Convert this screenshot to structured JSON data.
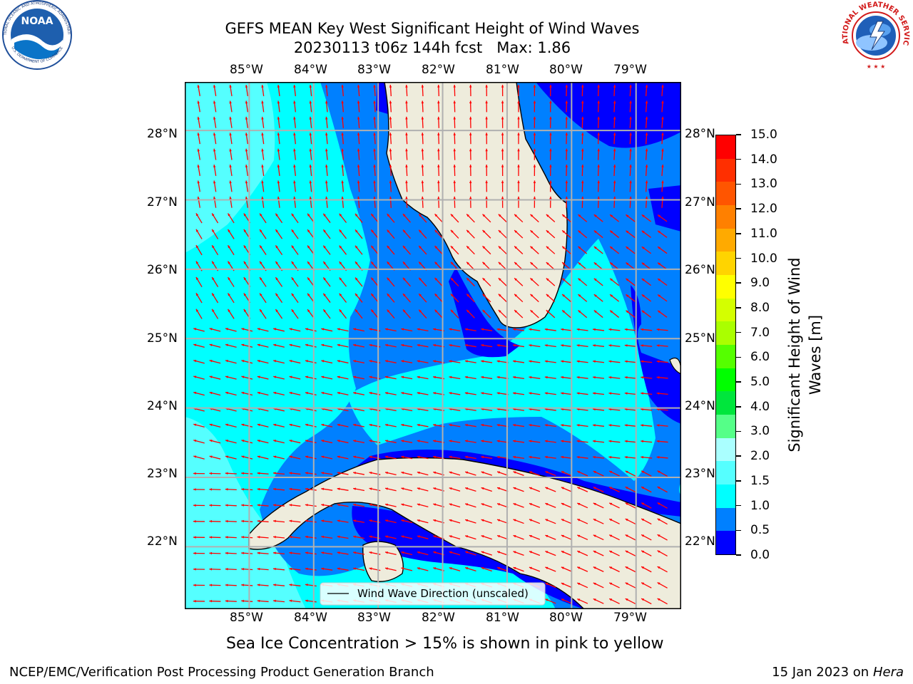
{
  "header": {
    "title_line1": "GEFS MEAN Key West Significant Height of Wind Waves",
    "title_line2": "20230113 t06z 144h fcst   Max: 1.86"
  },
  "logos": {
    "noaa_text": "NOAA",
    "noaa_ring_top": "NATIONAL OCEANIC AND ATMOSPHERIC ADMINISTRATION",
    "noaa_ring_bottom": "U.S. DEPARTMENT OF COMMERCE",
    "nws_ring": "NATIONAL WEATHER SERVICE"
  },
  "map": {
    "lon_labels": [
      "85°W",
      "84°W",
      "83°W",
      "82°W",
      "81°W",
      "80°W",
      "79°W"
    ],
    "lat_labels": [
      "28°N",
      "27°N",
      "26°N",
      "25°N",
      "24°N",
      "23°N",
      "22°N"
    ],
    "lon_range": [
      -86.0,
      -78.3
    ],
    "lat_range": [
      21.1,
      28.7
    ],
    "ocean_base_color": "#00ffff",
    "land_color": "#eeecdc",
    "arrow_color": "#ff0000",
    "legend_label": "Wind Wave Direction (unscaled)"
  },
  "colorbar": {
    "levels": [
      "15.0",
      "14.0",
      "13.0",
      "12.0",
      "11.0",
      "10.0",
      "9.0",
      "8.0",
      "7.0",
      "6.0",
      "5.0",
      "4.0",
      "3.0",
      "2.0",
      "1.5",
      "1.0",
      "0.5",
      "0.0"
    ],
    "colors_top_to_bottom": [
      "#ff0000",
      "#ff2f00",
      "#ff5500",
      "#ff8000",
      "#ffaa00",
      "#ffd400",
      "#ffff00",
      "#d4ff00",
      "#aaff00",
      "#55ff00",
      "#00ff00",
      "#00e63c",
      "#55ff88",
      "#aaffff",
      "#55ffff",
      "#00ffff",
      "#0080ff",
      "#0000ff"
    ],
    "label": "Significant Height of Wind Waves [m]"
  },
  "notes": {
    "sea_ice": "Sea Ice Concentration > 15% is shown in pink to yellow",
    "footer_left": "NCEP/EMC/Verification Post Processing Product Generation Branch",
    "footer_right_date": "15 Jan 2023 on",
    "footer_right_host": "Hera"
  }
}
